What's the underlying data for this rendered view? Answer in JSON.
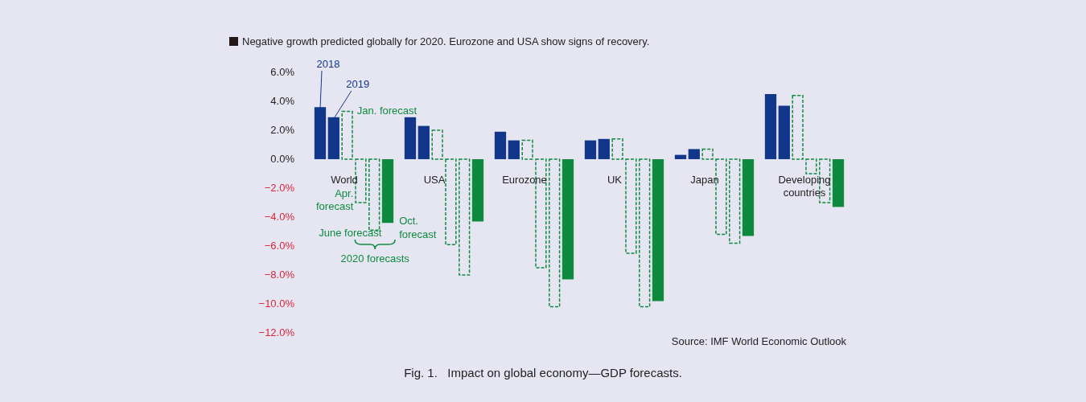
{
  "chart_data": {
    "type": "bar",
    "title": "Negative growth predicted globally for 2020. Eurozone and USA show signs of recovery.",
    "categories": [
      "World",
      "USA",
      "Eurozone",
      "UK",
      "Japan",
      "Developing countries"
    ],
    "series": [
      {
        "name": "2018",
        "color": "#12378a",
        "values": [
          3.6,
          2.9,
          1.9,
          1.3,
          0.3,
          4.5
        ]
      },
      {
        "name": "2019",
        "color": "#12378a",
        "values": [
          2.9,
          2.3,
          1.3,
          1.4,
          0.7,
          3.7
        ]
      },
      {
        "name": "Jan. forecast",
        "color": "#0e8a3e",
        "line_style": "dashed",
        "values": [
          3.3,
          2.0,
          1.3,
          1.4,
          0.7,
          4.4
        ]
      },
      {
        "name": "Apr. forecast",
        "color": "#0e8a3e",
        "line_style": "dashed",
        "values": [
          -3.0,
          -5.9,
          -7.5,
          -6.5,
          -5.2,
          -1.0
        ]
      },
      {
        "name": "June forecast",
        "color": "#0e8a3e",
        "line_style": "dashed",
        "values": [
          -4.9,
          -8.0,
          -10.2,
          -10.2,
          -5.8,
          -3.0
        ]
      },
      {
        "name": "Oct. forecast",
        "color": "#0e8a3e",
        "values": [
          -4.4,
          -4.3,
          -8.3,
          -9.8,
          -5.3,
          -3.3
        ]
      }
    ],
    "ylim": [
      -12,
      6
    ],
    "yticks": [
      {
        "value": -12,
        "label": "−12.0%"
      },
      {
        "value": -10,
        "label": "−10.0%"
      },
      {
        "value": -8,
        "label": "−8.0%"
      },
      {
        "value": -6,
        "label": "−6.0%"
      },
      {
        "value": -4,
        "label": "−4.0%"
      },
      {
        "value": -2,
        "label": "−2.0%"
      },
      {
        "value": 0,
        "label": "0.0%"
      },
      {
        "value": 2,
        "label": "2.0%"
      },
      {
        "value": 4,
        "label": "4.0%"
      },
      {
        "value": 6,
        "label": "6.0%"
      }
    ],
    "annotations": [
      "2020 forecasts",
      "Source: IMF World Economic Outlook",
      "Fig. 1.   Impact on global economy—GDP forecasts."
    ]
  }
}
